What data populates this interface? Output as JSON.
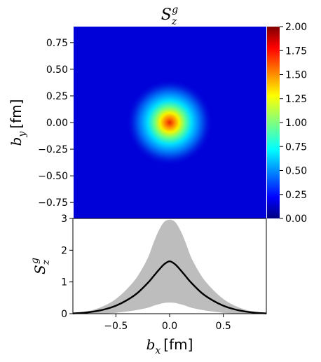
{
  "chart_data": [
    {
      "type": "heatmap",
      "title": {
        "main": "S",
        "sub": "z",
        "sup": "g"
      },
      "xlim": [
        -0.9,
        0.9
      ],
      "ylim": [
        -0.9,
        0.9
      ],
      "ylabel": {
        "main": "b",
        "sub": "y",
        "unit": "[fm]"
      },
      "yticks": [
        {
          "value": 0.75,
          "label": "0.75"
        },
        {
          "value": 0.5,
          "label": "0.50"
        },
        {
          "value": 0.25,
          "label": "0.25"
        },
        {
          "value": 0.0,
          "label": "0.00"
        },
        {
          "value": -0.25,
          "label": "−0.25"
        },
        {
          "value": -0.5,
          "label": "−0.50"
        },
        {
          "value": -0.75,
          "label": "−0.75"
        }
      ],
      "peak": {
        "x": 0.0,
        "y": 0.0,
        "value": 1.65
      },
      "profile_width_fm": 0.16,
      "colormap": "jet",
      "colorbar": {
        "range": [
          0.0,
          2.0
        ],
        "ticks": [
          {
            "value": 2.0,
            "label": "2.00"
          },
          {
            "value": 1.75,
            "label": "1.75"
          },
          {
            "value": 1.5,
            "label": "1.50"
          },
          {
            "value": 1.25,
            "label": "1.25"
          },
          {
            "value": 1.0,
            "label": "1.00"
          },
          {
            "value": 0.75,
            "label": "0.75"
          },
          {
            "value": 0.5,
            "label": "0.50"
          },
          {
            "value": 0.25,
            "label": "0.25"
          },
          {
            "value": 0.0,
            "label": "0.00"
          }
        ]
      }
    },
    {
      "type": "line",
      "xlim": [
        -0.9,
        0.9
      ],
      "ylim": [
        0,
        3
      ],
      "xlabel": {
        "main": "b",
        "sub": "x",
        "unit": "[fm]"
      },
      "ylabel": {
        "main": "S",
        "sub": "z",
        "sup": "g"
      },
      "xticks": [
        {
          "value": -0.5,
          "label": "−0.5"
        },
        {
          "value": 0.0,
          "label": "0.0"
        },
        {
          "value": 0.5,
          "label": "0.5"
        }
      ],
      "yticks": [
        {
          "value": 0,
          "label": "0"
        },
        {
          "value": 1,
          "label": "1"
        },
        {
          "value": 2,
          "label": "2"
        },
        {
          "value": 3,
          "label": "3"
        }
      ],
      "central": {
        "x": [
          -0.9,
          -0.8,
          -0.7,
          -0.6,
          -0.5,
          -0.4,
          -0.3,
          -0.2,
          -0.15,
          -0.1,
          -0.05,
          0.0,
          0.05,
          0.1,
          0.15,
          0.2,
          0.3,
          0.4,
          0.5,
          0.6,
          0.7,
          0.8,
          0.9
        ],
        "y": [
          0.01,
          0.03,
          0.07,
          0.14,
          0.25,
          0.42,
          0.65,
          0.98,
          1.18,
          1.38,
          1.56,
          1.65,
          1.56,
          1.38,
          1.18,
          0.98,
          0.65,
          0.42,
          0.25,
          0.14,
          0.07,
          0.03,
          0.01
        ]
      },
      "band_upper": {
        "x": [
          -0.9,
          -0.8,
          -0.7,
          -0.6,
          -0.5,
          -0.4,
          -0.3,
          -0.2,
          -0.15,
          -0.1,
          -0.05,
          0.0,
          0.05,
          0.1,
          0.15,
          0.2,
          0.3,
          0.4,
          0.5,
          0.6,
          0.7,
          0.8,
          0.9
        ],
        "y": [
          0.02,
          0.05,
          0.12,
          0.25,
          0.45,
          0.75,
          1.15,
          1.75,
          2.2,
          2.6,
          2.88,
          2.95,
          2.88,
          2.6,
          2.2,
          1.75,
          1.15,
          0.75,
          0.45,
          0.25,
          0.12,
          0.05,
          0.02
        ]
      },
      "band_lower": {
        "x": [
          -0.9,
          -0.8,
          -0.7,
          -0.6,
          -0.5,
          -0.4,
          -0.3,
          -0.2,
          -0.15,
          -0.1,
          -0.05,
          0.0,
          0.05,
          0.1,
          0.15,
          0.2,
          0.3,
          0.4,
          0.5,
          0.6,
          0.7,
          0.8,
          0.9
        ],
        "y": [
          0.0,
          0.0,
          0.01,
          0.02,
          0.04,
          0.08,
          0.13,
          0.2,
          0.26,
          0.31,
          0.35,
          0.36,
          0.35,
          0.31,
          0.26,
          0.2,
          0.13,
          0.08,
          0.04,
          0.02,
          0.01,
          0.0,
          0.0
        ]
      },
      "line_color": "#000000",
      "band_color": "#bdbdbd"
    }
  ]
}
